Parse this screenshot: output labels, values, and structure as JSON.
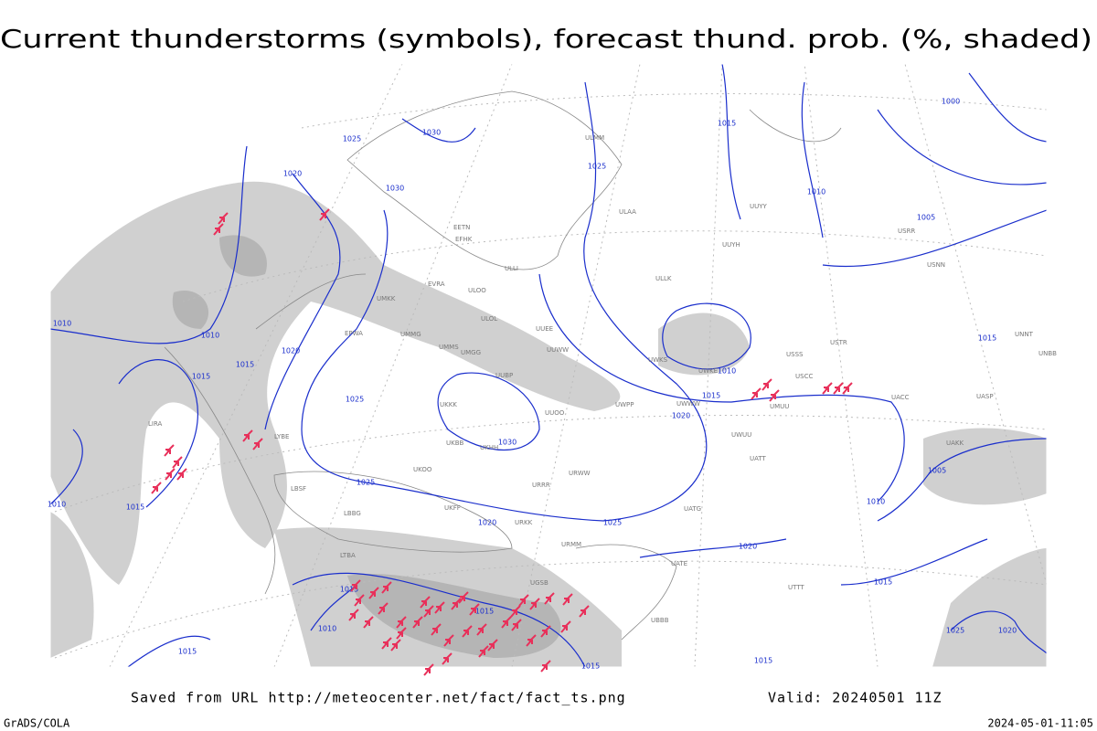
{
  "title": "Current thunderstorms (symbols), forecast thund. prob. (%, shaded)",
  "footer": {
    "source": "Saved from URL http://meteocenter.net/fact/fact_ts.png",
    "valid": "Valid: 20240501 11Z",
    "credit": "GrADS/COLA",
    "timestamp": "2024-05-01-11:05"
  },
  "isobar_labels": [
    "1030",
    "1025",
    "1030",
    "1020",
    "1025",
    "1015",
    "1010",
    "1005",
    "1010",
    "1010",
    "1015",
    "1020",
    "1015",
    "1025",
    "1020",
    "1015",
    "1010",
    "1030",
    "1025",
    "1020",
    "1025",
    "1015",
    "1010",
    "1020",
    "1010",
    "1005",
    "1015",
    "1015",
    "1015",
    "1010",
    "1015",
    "1015",
    "1015",
    "1015",
    "1025",
    "1020",
    "1000"
  ],
  "stations": [
    "ULOO",
    "ULLI",
    "EFHK",
    "EETN",
    "EVRA",
    "UMKK",
    "EPWA",
    "UMMG",
    "UMMS",
    "UMGG",
    "UUWW",
    "UUEE",
    "UUBP",
    "UUOO",
    "UKKK",
    "UKBB",
    "UKOO",
    "UKHH",
    "URRR",
    "URWW",
    "UWWW",
    "UWPP",
    "UWKS",
    "UWKE",
    "UWUU",
    "USSS",
    "USCC",
    "USTR",
    "UACC",
    "UAKK",
    "UATT",
    "UATG",
    "UATE",
    "UMUU",
    "URKK",
    "UGSB",
    "UBBB",
    "UTTT",
    "UUYY",
    "UUYH",
    "ULLK",
    "LIRA",
    "LYBE",
    "LBSF",
    "LBBG",
    "LTBA",
    "UKFF",
    "URMM",
    "ULAA",
    "ULMM",
    "ULOL",
    "UNNT",
    "UNBB",
    "UASP",
    "USRR",
    "USNN"
  ]
}
